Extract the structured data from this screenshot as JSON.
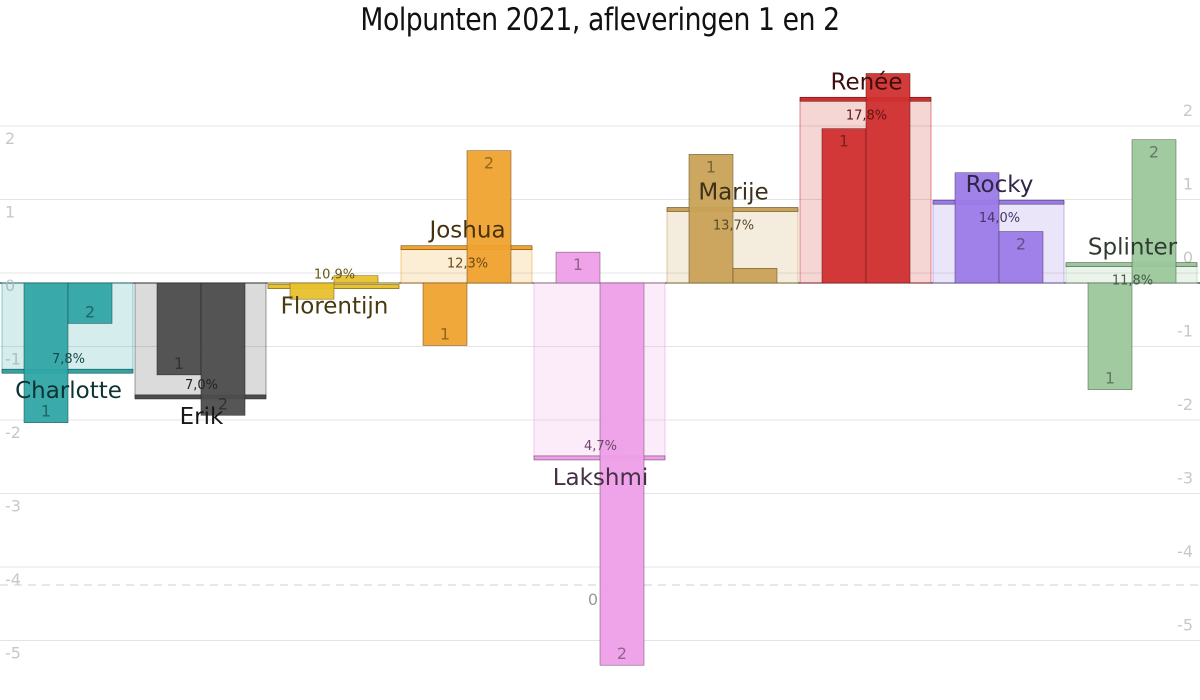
{
  "chart_data": {
    "type": "bar",
    "title": "Molpunten 2021, afleveringen 1 en 2",
    "left_ticks": [
      "2",
      "1",
      "0",
      "-1",
      "-2",
      "-3",
      "-4",
      "-5"
    ],
    "right_ticks": [
      "2",
      "1",
      "0",
      "-1",
      "-2",
      "-3",
      "-4",
      "-5"
    ],
    "series": [
      {
        "name": "Charlotte",
        "percentage": "7,8%",
        "average": -1.2,
        "episodes": [
          {
            "label": "1",
            "value": -1.9
          },
          {
            "label": "2",
            "value": -0.55
          }
        ],
        "color": "#30a5a5"
      },
      {
        "name": "Erik",
        "percentage": "7,0%",
        "average": -1.55,
        "episodes": [
          {
            "label": "1",
            "value": -1.25
          },
          {
            "label": "2",
            "value": -1.8
          }
        ],
        "color": "#4d4d4d"
      },
      {
        "name": "Florentijn",
        "percentage": "10,9%",
        "average": -0.05,
        "episodes": [
          {
            "label": "",
            "value": -0.22
          },
          {
            "label": "",
            "value": 0.1
          }
        ],
        "color": "#e8c12e"
      },
      {
        "name": "Joshua",
        "percentage": "12,3%",
        "average": 0.48,
        "episodes": [
          {
            "label": "1",
            "value": -0.85
          },
          {
            "label": "2",
            "value": 1.8
          }
        ],
        "color": "#f0a32f"
      },
      {
        "name": "Lakshmi",
        "percentage": "4,7%",
        "average": -2.38,
        "episodes": [
          {
            "label": "1",
            "value": 0.42
          },
          {
            "label": "2",
            "value": -5.2
          }
        ],
        "color": "#ee9fe8",
        "extra_label": "0"
      },
      {
        "name": "Marije",
        "percentage": "13,7%",
        "average": 1.0,
        "episodes": [
          {
            "label": "1",
            "value": 1.75
          },
          {
            "label": "",
            "value": 0.2
          }
        ],
        "color": "#c9a257"
      },
      {
        "name": "Renée",
        "percentage": "17,8%",
        "average": 2.5,
        "episodes": [
          {
            "label": "1",
            "value": 2.1
          },
          {
            "label": "",
            "value": 2.85
          }
        ],
        "color": "#d12f2f"
      },
      {
        "name": "Rocky",
        "percentage": "14,0%",
        "average": 1.1,
        "episodes": [
          {
            "label": "",
            "value": 1.5
          },
          {
            "label": "2",
            "value": 0.7
          }
        ],
        "color": "#9c7be8"
      },
      {
        "name": "Splinter",
        "percentage": "11,8%",
        "average": 0.25,
        "episodes": [
          {
            "label": "1",
            "value": -1.45
          },
          {
            "label": "2",
            "value": 1.95
          }
        ],
        "color": "#9cc79c"
      }
    ],
    "ylim": [
      -5.2,
      3.2
    ],
    "grid": true,
    "legend": "none"
  }
}
